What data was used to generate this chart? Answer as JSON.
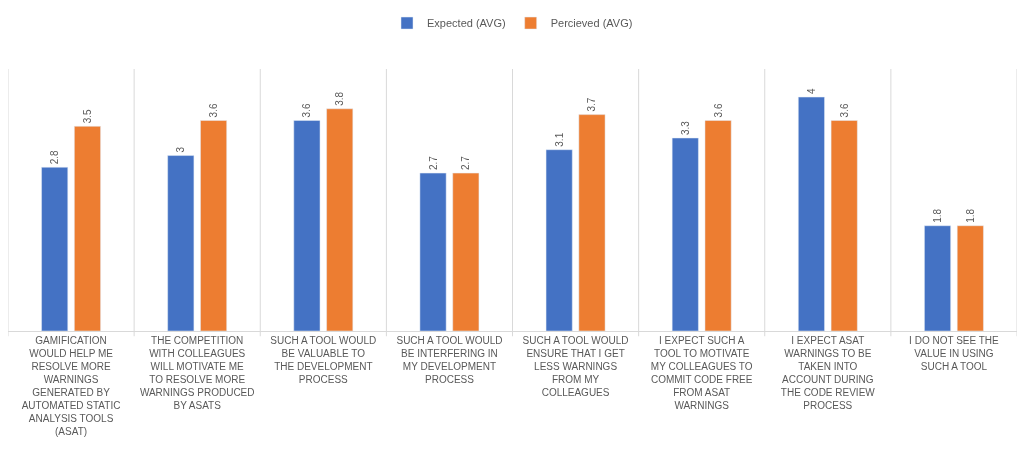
{
  "chart_data": {
    "type": "bar",
    "data_labels": true,
    "grid": "x",
    "legend": "top",
    "categories": [
      "GAMIFICATION WOULD HELP ME RESOLVE MORE WARNINGS GENERATED BY AUTOMATED STATIC ANALYSIS TOOLS (ASAT)",
      "THE COMPETITION WITH COLLEAGUES WILL MOTIVATE ME TO RESOLVE MORE WARNINGS PRODUCED BY ASATS",
      "SUCH A TOOL WOULD BE VALUABLE TO THE DEVELOPMENT PROCESS",
      "SUCH A TOOL WOULD BE INTERFERING IN MY DEVELOPMENT PROCESS",
      "SUCH A TOOL WOULD ENSURE THAT I GET LESS WARNINGS FROM MY COLLEAGUES",
      "I EXPECT SUCH A TOOL TO MOTIVATE MY COLLEAGUES TO COMMIT CODE FREE FROM ASAT WARNINGS",
      "I EXPECT ASAT WARNINGS TO BE TAKEN INTO ACCOUNT DURING THE CODE REVIEW PROCESS",
      "I DO NOT SEE THE VALUE IN USING SUCH A TOOL"
    ],
    "series": [
      {
        "name": "Expected (AVG)",
        "color": "#4472c4",
        "values": [
          2.8,
          3,
          3.6,
          2.7,
          3.1,
          3.3,
          4,
          1.8
        ]
      },
      {
        "name": "Percieved (AVG)",
        "color": "#ed7d31",
        "values": [
          3.5,
          3.6,
          3.8,
          2.7,
          3.7,
          3.6,
          3.6,
          1.8
        ]
      }
    ]
  }
}
